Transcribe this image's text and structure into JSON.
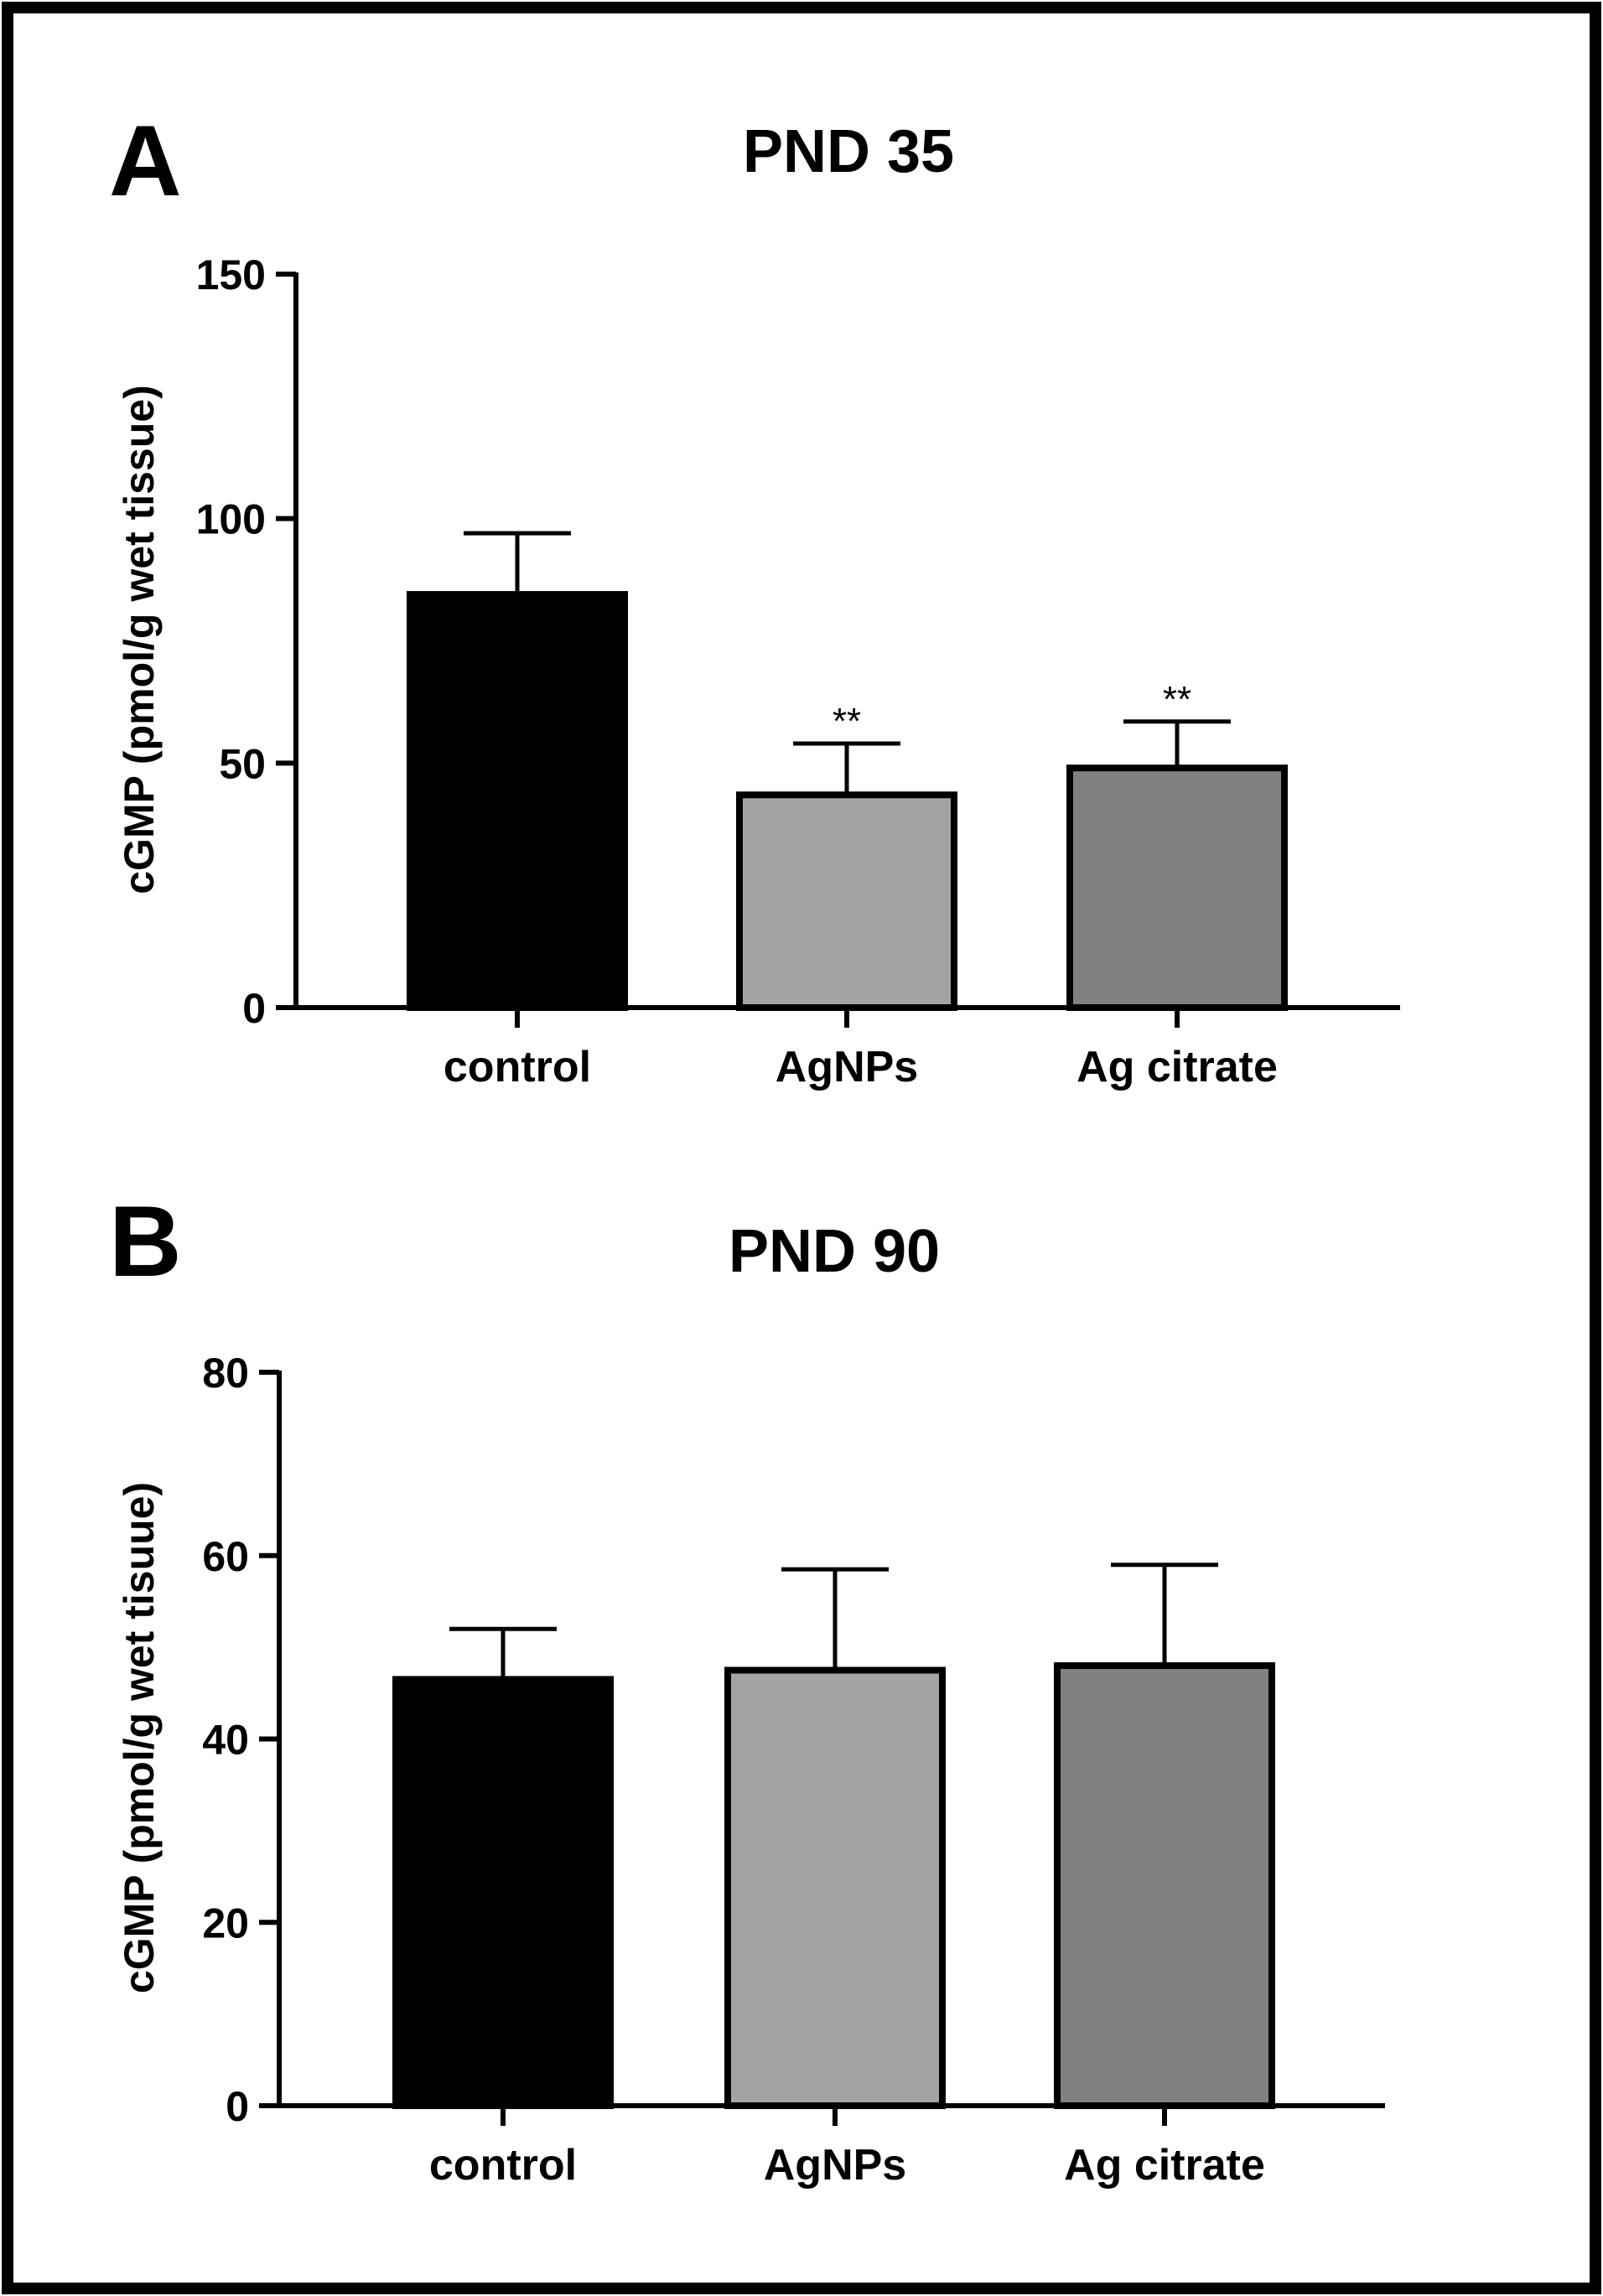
{
  "figure": {
    "border_color": "#000000",
    "background": "#ffffff"
  },
  "chart_data": [
    {
      "type": "bar",
      "panel_letter": "A",
      "title": "PND 35",
      "xlabel": "",
      "ylabel": "cGMP (pmol/g wet tissue)",
      "categories": [
        "control",
        "AgNPs",
        "Ag citrate"
      ],
      "values": [
        84.5,
        43.5,
        49.0
      ],
      "errors": [
        12.5,
        10.5,
        9.5
      ],
      "significance": [
        "",
        "**",
        "**"
      ],
      "bar_colors": [
        "#000000",
        "#a4a4a6",
        "#818181"
      ],
      "ylim": [
        0,
        150
      ],
      "yticks": [
        0,
        50,
        100,
        150
      ],
      "grid": false
    },
    {
      "type": "bar",
      "panel_letter": "B",
      "title": "PND 90",
      "xlabel": "",
      "ylabel": "cGMP (pmol/g wet tisuue)",
      "categories": [
        "control",
        "AgNPs",
        "Ag citrate"
      ],
      "values": [
        46.5,
        47.5,
        48.0
      ],
      "errors": [
        5.5,
        11.0,
        11.0
      ],
      "significance": [
        "",
        "",
        ""
      ],
      "bar_colors": [
        "#000000",
        "#a4a4a6",
        "#818181"
      ],
      "ylim": [
        0,
        80
      ],
      "yticks": [
        0,
        20,
        40,
        60,
        80
      ],
      "grid": false
    }
  ]
}
